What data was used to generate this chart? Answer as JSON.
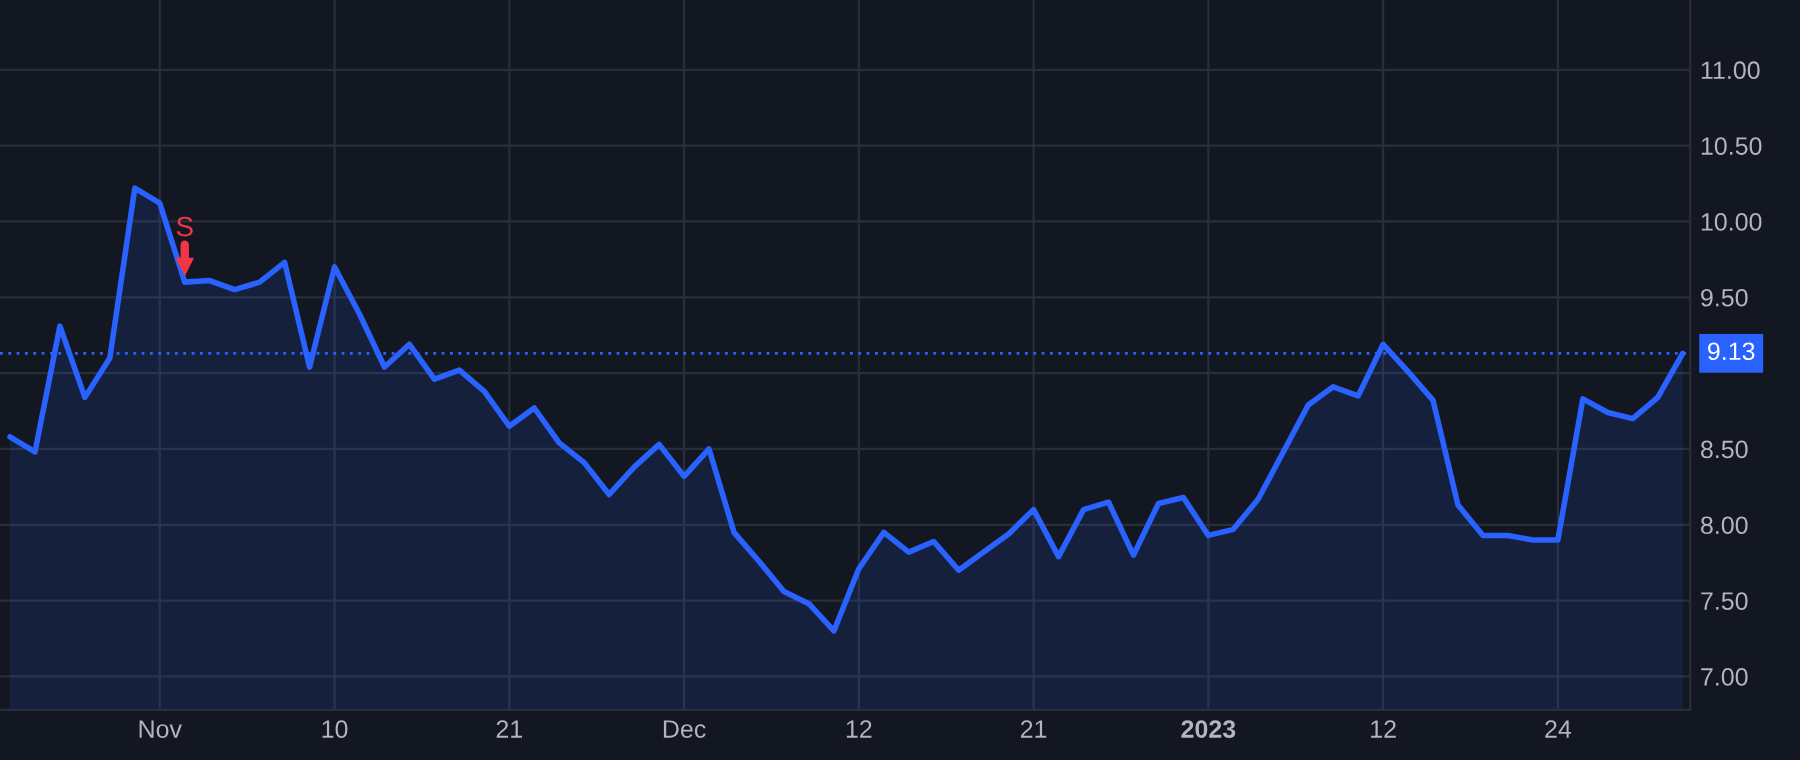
{
  "chart_data": {
    "type": "area",
    "categories": [
      null,
      null,
      null,
      null,
      null,
      null,
      "Nov",
      null,
      null,
      null,
      null,
      null,
      null,
      "10",
      null,
      null,
      null,
      null,
      null,
      null,
      "21",
      null,
      null,
      null,
      null,
      null,
      null,
      "Dec",
      null,
      null,
      null,
      null,
      null,
      null,
      "12",
      null,
      null,
      null,
      null,
      null,
      null,
      "21",
      null,
      null,
      null,
      null,
      null,
      null,
      "2023",
      null,
      null,
      null,
      null,
      null,
      null,
      "12",
      null,
      null,
      null,
      null,
      null,
      null,
      "24",
      null,
      null,
      null,
      null,
      null
    ],
    "series": [
      {
        "color": "#2962ff",
        "values": [
          8.58,
          8.48,
          9.31,
          8.84,
          9.1,
          10.22,
          10.12,
          9.6,
          9.61,
          9.55,
          9.6,
          9.73,
          9.04,
          9.7,
          9.39,
          9.04,
          9.19,
          8.96,
          9.02,
          8.88,
          8.65,
          8.77,
          8.54,
          8.41,
          8.2,
          8.38,
          8.53,
          8.32,
          8.5,
          7.95,
          7.76,
          7.56,
          7.48,
          7.3,
          7.71,
          7.95,
          7.82,
          7.89,
          7.7,
          7.82,
          7.94,
          8.1,
          7.79,
          8.1,
          8.15,
          7.8,
          8.14,
          8.18,
          7.93,
          7.97,
          8.17,
          8.48,
          8.79,
          8.91,
          8.85,
          9.19,
          9.01,
          8.82,
          8.13,
          7.93,
          7.93,
          7.9,
          7.9,
          8.83,
          8.74,
          8.7,
          8.84,
          9.13
        ]
      },
      {
        "type": "scatter",
        "color": "#f23645",
        "marker": "triangle",
        "values": [
          null,
          null,
          null,
          null,
          null,
          null,
          null,
          9.7,
          null,
          null,
          null,
          null,
          null,
          null,
          null,
          null,
          null,
          null,
          null,
          null,
          null,
          null,
          null,
          null,
          null,
          null,
          null,
          null,
          null,
          null,
          null,
          null,
          null,
          null,
          null,
          null,
          null,
          null,
          null,
          null,
          null,
          null,
          null,
          null,
          null,
          null,
          null,
          null,
          null,
          null,
          null,
          null,
          null,
          null,
          null,
          null,
          null,
          null,
          null,
          null,
          null,
          null,
          null,
          null,
          null,
          null,
          null,
          null
        ]
      }
    ],
    "ylim": [
      6.78,
      11.46
    ],
    "yticks": [
      {
        "value": 7,
        "label": "7.00"
      },
      {
        "value": 7.5,
        "label": "7.50"
      },
      {
        "value": 8,
        "label": "8.00"
      },
      {
        "value": 8.5,
        "label": "8.50"
      },
      {
        "value": 9,
        "label": null
      },
      {
        "value": 9.5,
        "label": "9.50"
      },
      {
        "value": 10,
        "label": "10.00"
      },
      {
        "value": 10.5,
        "label": "10.50"
      },
      {
        "value": 11,
        "label": "11.00"
      }
    ],
    "ref_lines": [
      {
        "axis": "y",
        "value": 9.13,
        "label": "9.13",
        "color": "#2962ff",
        "line_style": "dotted"
      }
    ],
    "annotations": [
      "S"
    ],
    "grid": true
  }
}
